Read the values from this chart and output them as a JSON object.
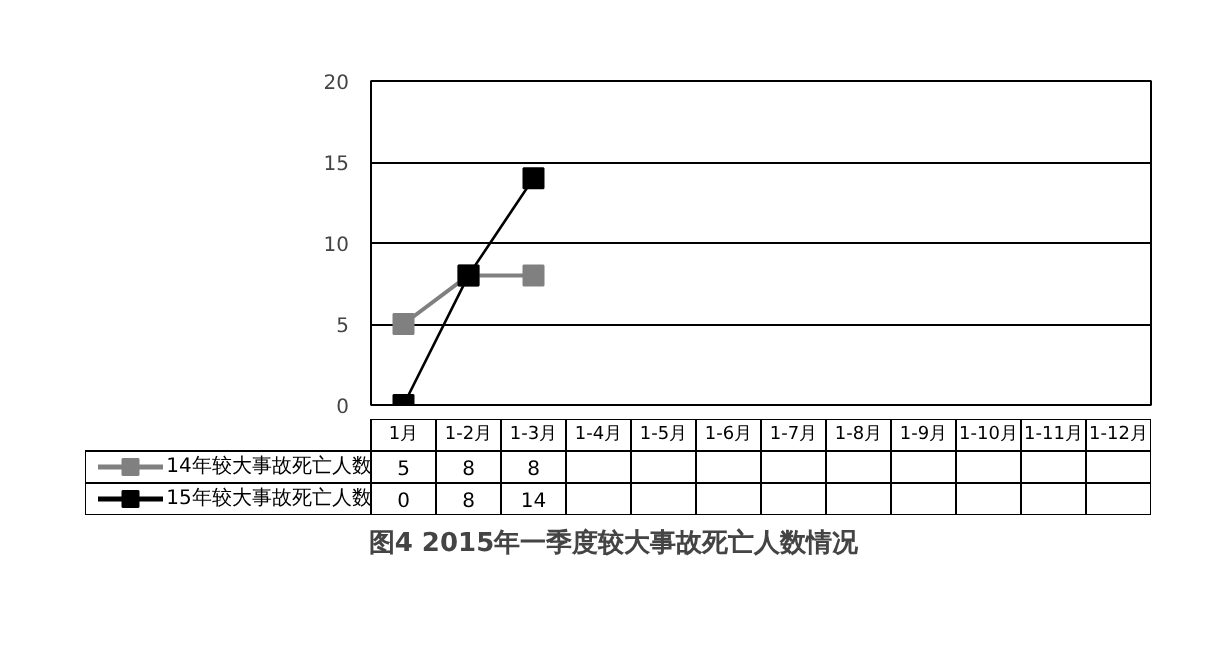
{
  "chart_data": {
    "type": "line",
    "categories": [
      "1月",
      "1-2月",
      "1-3月",
      "1-4月",
      "1-5月",
      "1-6月",
      "1-7月",
      "1-8月",
      "1-9月",
      "1-10月",
      "1-11月",
      "1-12月"
    ],
    "ylim": [
      0,
      20
    ],
    "yticks": [
      0,
      5,
      10,
      15,
      20
    ],
    "grid": "y",
    "marker": "square",
    "legend": "bottom left",
    "data_labels": true,
    "series": [
      {
        "name": "14年较大事故死亡人数",
        "color": "#808080",
        "values": [
          5,
          8,
          8,
          null,
          null,
          null,
          null,
          null,
          null,
          null,
          null,
          null
        ]
      },
      {
        "name": "15年较大事故死亡人数",
        "color": "#000000",
        "values": [
          0,
          8,
          14,
          null,
          null,
          null,
          null,
          null,
          null,
          null,
          null,
          null
        ]
      }
    ],
    "annotations": [
      "图4  2015年一季度较大事故死亡人数情况"
    ]
  }
}
